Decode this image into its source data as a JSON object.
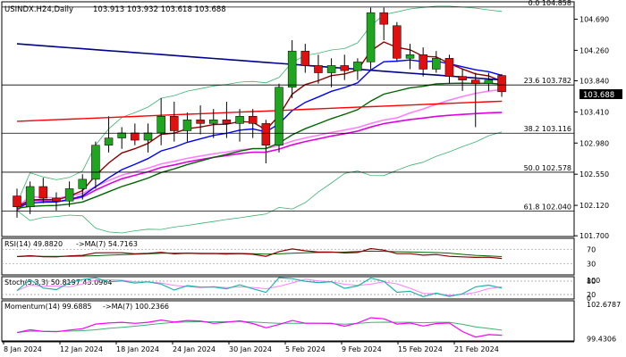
{
  "header": {
    "symbol": "USINDX.H24,Daily",
    "ohlc": "103.913 103.932 103.618 103.688"
  },
  "chart_data": {
    "type": "candlestick",
    "symbol": "USINDX.H24",
    "timeframe": "Daily",
    "x_labels": [
      "8 Jan 2024",
      "12 Jan 2024",
      "18 Jan 2024",
      "24 Jan 2024",
      "30 Jan 2024",
      "5 Feb 2024",
      "9 Feb 2024",
      "15 Feb 2024",
      "21 Feb 2024"
    ],
    "y_ticks": [
      "104.690",
      "104.260",
      "103.840",
      "103.410",
      "102.980",
      "102.550",
      "102.120",
      "101.700"
    ],
    "y_range": [
      101.69,
      104.93
    ],
    "current_price": "103.688",
    "fib_levels": [
      {
        "label": "0.0 104.858",
        "price": 104.858
      },
      {
        "label": "23.6 103.782",
        "price": 103.782
      },
      {
        "label": "38.2 103.116",
        "price": 103.116
      },
      {
        "label": "50.0 102.578",
        "price": 102.578
      },
      {
        "label": "61.8 102.040",
        "price": 102.04
      }
    ],
    "candles": [
      [
        102.25,
        102.35,
        101.95,
        102.1
      ],
      [
        102.1,
        102.45,
        102.0,
        102.38
      ],
      [
        102.38,
        102.5,
        102.15,
        102.22
      ],
      [
        102.22,
        102.3,
        102.05,
        102.18
      ],
      [
        102.18,
        102.45,
        102.1,
        102.35
      ],
      [
        102.35,
        102.55,
        102.2,
        102.48
      ],
      [
        102.48,
        103.0,
        102.35,
        102.95
      ],
      [
        102.95,
        103.35,
        102.85,
        103.05
      ],
      [
        103.05,
        103.2,
        102.9,
        103.12
      ],
      [
        103.12,
        103.25,
        102.95,
        103.02
      ],
      [
        103.02,
        103.25,
        102.85,
        103.12
      ],
      [
        103.12,
        103.6,
        102.95,
        103.35
      ],
      [
        103.35,
        103.55,
        103.0,
        103.15
      ],
      [
        103.15,
        103.4,
        103.0,
        103.3
      ],
      [
        103.3,
        103.5,
        103.1,
        103.25
      ],
      [
        103.25,
        103.45,
        103.05,
        103.3
      ],
      [
        103.3,
        103.55,
        103.05,
        103.25
      ],
      [
        103.25,
        103.45,
        103.0,
        103.35
      ],
      [
        103.35,
        103.45,
        103.05,
        103.25
      ],
      [
        103.25,
        103.3,
        102.7,
        102.95
      ],
      [
        102.95,
        103.8,
        102.85,
        103.75
      ],
      [
        103.75,
        104.4,
        103.6,
        104.25
      ],
      [
        104.25,
        104.35,
        103.95,
        104.05
      ],
      [
        104.05,
        104.2,
        103.8,
        103.95
      ],
      [
        103.95,
        104.15,
        103.75,
        104.05
      ],
      [
        104.05,
        104.2,
        103.85,
        103.98
      ],
      [
        103.98,
        104.15,
        103.85,
        104.1
      ],
      [
        104.1,
        104.85,
        104.0,
        104.78
      ],
      [
        104.78,
        104.85,
        104.4,
        104.62
      ],
      [
        104.6,
        104.65,
        104.1,
        104.15
      ],
      [
        104.15,
        104.35,
        104.0,
        104.2
      ],
      [
        104.2,
        104.3,
        103.9,
        104.0
      ],
      [
        104.0,
        104.25,
        103.95,
        104.15
      ],
      [
        104.15,
        104.2,
        103.8,
        103.9
      ],
      [
        103.9,
        104.0,
        103.7,
        103.85
      ],
      [
        103.85,
        103.95,
        103.2,
        103.8
      ],
      [
        103.8,
        103.95,
        103.7,
        103.85
      ],
      [
        103.913,
        103.932,
        103.618,
        103.688
      ]
    ],
    "indicators": [
      {
        "name": "RSI",
        "label": "RSI(14) 49.8820",
        "ma_label": "->MA(7) 54.7163",
        "ticks": [
          "70",
          "30"
        ],
        "range": [
          0,
          100
        ],
        "line_levels": [
          70,
          30
        ]
      },
      {
        "name": "Stoch",
        "label": "Stoch(5,3,3) 50.8197 43.0984",
        "ticks": [
          "100",
          "80",
          "20",
          "0"
        ],
        "range": [
          0,
          100
        ],
        "line_levels": [
          80,
          20
        ]
      },
      {
        "name": "Momentum",
        "label": "Momentum(14) 99.6885",
        "ma_label": "->MA(7) 100.2366",
        "ticks": [
          "102.6787",
          "99.4306"
        ],
        "range": [
          99.25,
          102.85
        ]
      }
    ]
  }
}
